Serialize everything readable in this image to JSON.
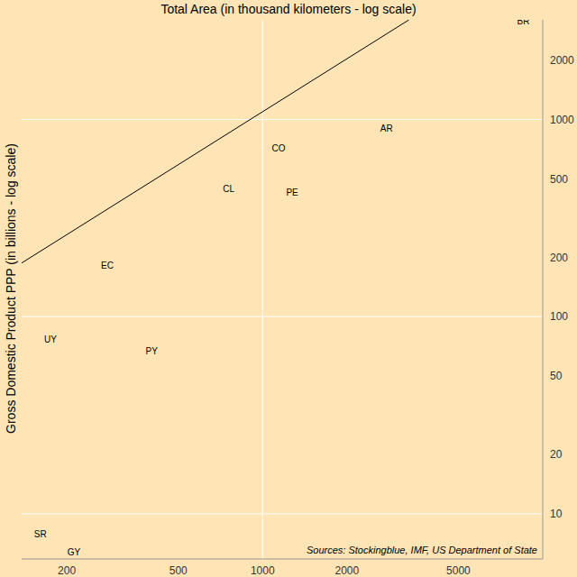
{
  "chart_data": {
    "type": "scatter",
    "title": "Total Area (in thousand kilometers - log scale)",
    "y_label": "Gross Domestic Product PPP (in billions - log scale)",
    "annotation": "Sources: Stockingblue, IMF, US Department of State",
    "labels": [
      "BR",
      "AR",
      "CO",
      "PE",
      "CL",
      "EC",
      "UY",
      "PY",
      "SR",
      "GY"
    ],
    "x": [
      8530,
      2770,
      1140,
      1275,
      757,
      279,
      175,
      402,
      161,
      212
    ],
    "values": [
      3160,
      900,
      714,
      428,
      446,
      182,
      77,
      67,
      7.9,
      6.4
    ],
    "color": "#000000",
    "trend_line": {
      "type": "line",
      "x": [
        138,
        3330
      ],
      "y": [
        187,
        3200
      ],
      "color": "#000000"
    },
    "log": true,
    "grid": true,
    "xlim": [
      138,
      10000
    ],
    "ylim": [
      5.9,
      3200
    ],
    "xticks": [
      200,
      500,
      1000,
      2000,
      5000
    ],
    "yticks": [
      10,
      20,
      50,
      100,
      200,
      500,
      1000,
      2000
    ]
  }
}
